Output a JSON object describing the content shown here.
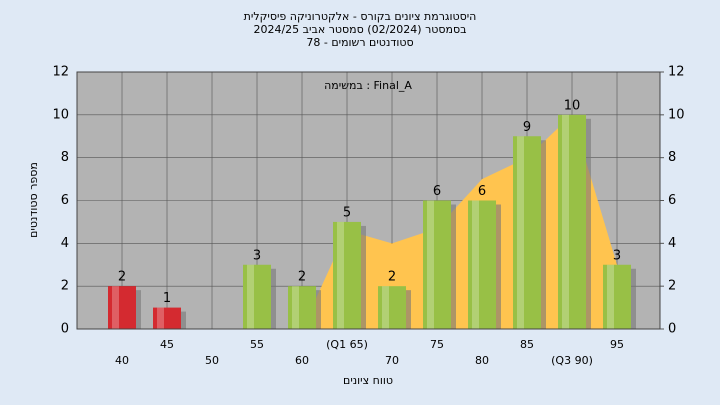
{
  "chart_data": {
    "type": "bar",
    "title": [
      "היסטוגרמת ציונים בקורס - אלקטרוניקה פיסיקלית",
      "בסמסטר  (02/2024)  סמסטר אביב 2024/25",
      "סטודנטים רשומים - 78"
    ],
    "annotation": "במשימה : Final_A",
    "xlabel": "טווח ציונים",
    "ylabel": "מספר סטודנטים",
    "categories": [
      "40",
      "45",
      "50",
      "55",
      "60",
      "(Q1 65)",
      "70",
      "75",
      "80",
      "85",
      "(Q3 90)",
      "95"
    ],
    "values": [
      2,
      1,
      0,
      3,
      2,
      5,
      2,
      6,
      6,
      9,
      10,
      3
    ],
    "colors": [
      "#d42a30",
      "#d42a30",
      "#98c046",
      "#98c046",
      "#98c046",
      "#98c046",
      "#98c046",
      "#98c046",
      "#98c046",
      "#98c046",
      "#98c046",
      "#98c046"
    ],
    "area": {
      "color": "#ffc44f",
      "values": [
        null,
        null,
        null,
        null,
        0,
        4.6,
        4,
        4.7,
        7,
        8,
        10,
        3
      ]
    },
    "ylim": [
      0,
      12
    ],
    "yticks": [
      0,
      2,
      4,
      6,
      8,
      10,
      12
    ],
    "y2lim": [
      0,
      12
    ],
    "y2ticks": [
      0,
      2,
      4,
      6,
      8,
      10,
      12
    ],
    "grid": true
  }
}
